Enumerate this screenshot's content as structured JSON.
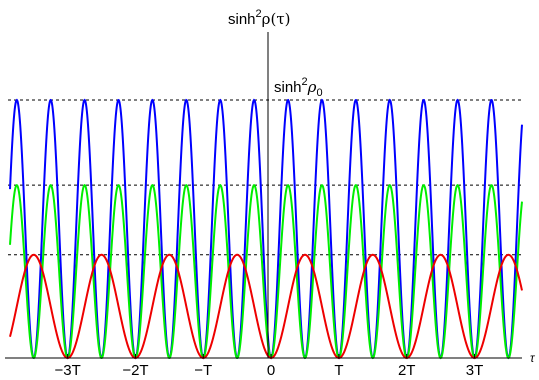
{
  "chart_data": {
    "type": "line",
    "ylabel_prefix": "sinh",
    "ylabel_exp": "2",
    "ylabel_func": "ρ(τ)",
    "xlabel": "τ",
    "annotation_prefix": "sinh",
    "annotation_exp": "2",
    "annotation_sym": "ρ",
    "annotation_sub": "0",
    "x_ticks": [
      {
        "value": -3,
        "label": "−3T"
      },
      {
        "value": -2,
        "label": "−2T"
      },
      {
        "value": -1,
        "label": "−T"
      },
      {
        "value": 0,
        "label": "0"
      },
      {
        "value": 1,
        "label": "T"
      },
      {
        "value": 2,
        "label": "2T"
      },
      {
        "value": 3,
        "label": "3T"
      }
    ],
    "xlim": [
      -3.85,
      3.7
    ],
    "ylim": [
      0,
      1.0
    ],
    "reference_lines": [
      0.4,
      0.67,
      1.0
    ],
    "series": [
      {
        "color": "#0000ff",
        "amplitude": 1.0,
        "period": 0.5,
        "phase": 0
      },
      {
        "color": "#00ee00",
        "amplitude": 0.67,
        "period": 0.5,
        "phase": 0
      },
      {
        "color": "#ee0000",
        "amplitude": 0.4,
        "period": 1.0,
        "phase": 0
      }
    ]
  }
}
